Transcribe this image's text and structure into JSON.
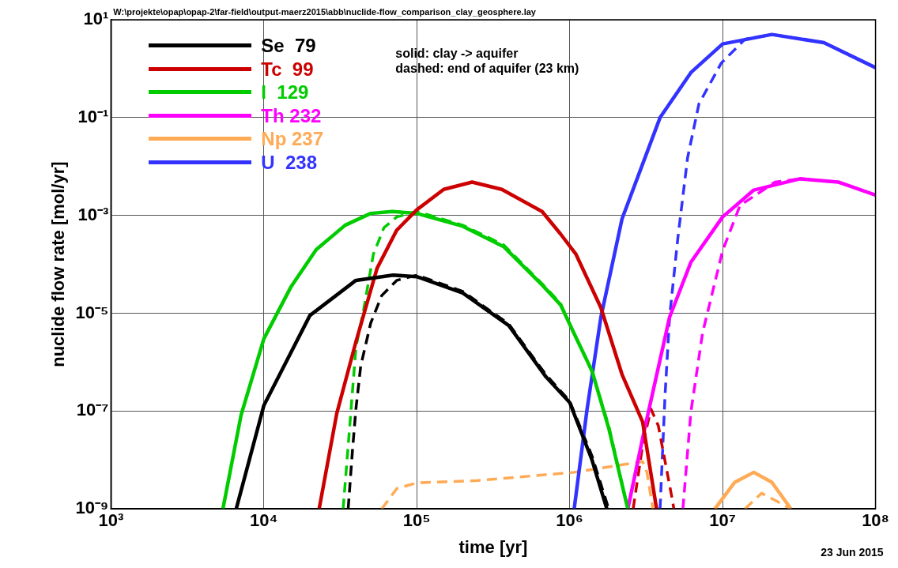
{
  "chart_data": {
    "type": "line",
    "xlabel": "time [yr]",
    "ylabel": "nuclide flow rate [mol/yr]",
    "log": "xy",
    "grid": true,
    "legend": "top left",
    "xlim": [
      1000,
      100000000
    ],
    "ylim": [
      1e-09,
      10
    ],
    "xticks": [
      {
        "value": 1000,
        "label": "10³"
      },
      {
        "value": 10000,
        "label": "10⁴"
      },
      {
        "value": 100000,
        "label": "10⁵"
      },
      {
        "value": 1000000,
        "label": "10⁶"
      },
      {
        "value": 10000000,
        "label": "10⁷"
      },
      {
        "value": 100000000,
        "label": "10⁸"
      }
    ],
    "yticks": [
      {
        "value": 1e-09,
        "label": "10⁻⁹"
      },
      {
        "value": 1e-07,
        "label": "10⁻⁷"
      },
      {
        "value": 1e-05,
        "label": "10⁻⁵"
      },
      {
        "value": 0.001,
        "label": "10⁻³"
      },
      {
        "value": 0.1,
        "label": "10⁻¹"
      },
      {
        "value": 10,
        "label": "10¹"
      }
    ],
    "annotations": [
      "W:\\projekte\\opap\\opap-2\\far-field\\output-maerz2015\\abb\\nuclide-flow_comparison_clay_geosphere.lay",
      "solid: clay -> aquifer",
      "dashed: end of aquifer (23 km)",
      "23 Jun 2015"
    ],
    "series": [
      {
        "name": "Se  79",
        "color": "#000000",
        "line_style": "solid",
        "x": [
          6600,
          10000,
          20000,
          40000,
          70000,
          100000,
          200000,
          400000,
          700000,
          1000000,
          1400000,
          1750000
        ],
        "values": [
          1e-09,
          1.3e-07,
          9e-06,
          4.7e-05,
          6e-05,
          5.6e-05,
          2.6e-05,
          5.6e-06,
          5e-07,
          1.5e-07,
          1e-08,
          1e-09
        ]
      },
      {
        "name": "Tc  99",
        "color": "#cc0000",
        "line_style": "solid",
        "x": [
          23000,
          30000,
          40000,
          55000,
          74000,
          100000,
          150000,
          230000,
          360000,
          660000,
          870000,
          1100000,
          1600000,
          2200000,
          3000000,
          3700000
        ],
        "values": [
          1e-09,
          9e-08,
          2.6e-06,
          8.3e-05,
          0.0005,
          0.0013,
          0.0034,
          0.0048,
          0.0034,
          0.0012,
          0.00042,
          0.00016,
          1.3e-05,
          5.6e-07,
          6e-08,
          1e-09
        ]
      },
      {
        "name": "I  129",
        "color": "#00cc00",
        "line_style": "solid",
        "x": [
          5400,
          7100,
          10000,
          15000,
          22000,
          34000,
          50000,
          69000,
          100000,
          200000,
          370000,
          660000,
          870000,
          1100000,
          1400000,
          1800000,
          2400000
        ],
        "values": [
          1e-09,
          8.3e-08,
          3e-06,
          3.4e-05,
          0.0002,
          0.00063,
          0.0011,
          0.0012,
          0.0011,
          0.0006,
          0.00023,
          3.8e-05,
          1.5e-05,
          3.2e-06,
          6.6e-07,
          4.5e-08,
          1e-09
        ]
      },
      {
        "name": "Th 232",
        "color": "#ff00ff",
        "line_style": "solid",
        "x": [
          2400000,
          3100000,
          4500000,
          6200000,
          10000000,
          16000000,
          32000000,
          57000000,
          100000000
        ],
        "values": [
          1e-09,
          4.5e-08,
          8.3e-06,
          0.00011,
          0.00093,
          0.0033,
          0.0056,
          0.0048,
          0.0026
        ]
      },
      {
        "name": "Np 237",
        "color": "#ffaa55",
        "line_style": "solid",
        "x": [
          8900000,
          12000000,
          16000000,
          21000000,
          28000000
        ],
        "values": [
          1e-09,
          3.5e-09,
          5.6e-09,
          3.5e-09,
          1e-09
        ]
      },
      {
        "name": "U  238",
        "color": "#3333ff",
        "line_style": "solid",
        "x": [
          1070000,
          1300000,
          1600000,
          2200000,
          3900000,
          6200000,
          10000000,
          21000000,
          46000000,
          100000000
        ],
        "values": [
          1e-09,
          1.1e-07,
          8.3e-06,
          0.00085,
          0.1,
          0.83,
          3.2,
          5,
          3.4,
          1.05
        ]
      },
      {
        "color": "#000000",
        "line_style": "dashed",
        "x": [
          35600,
          38000,
          40000,
          43000,
          50000,
          59000,
          74000,
          100000,
          200000,
          400000,
          700000,
          1000000,
          1400000,
          1800000
        ],
        "values": [
          1e-09,
          1.6e-08,
          1.1e-07,
          8.3e-07,
          6.3e-06,
          2.3e-05,
          4.7e-05,
          6e-05,
          2.8e-05,
          6e-06,
          5.5e-07,
          1.6e-07,
          1.2e-08,
          1e-09
        ]
      },
      {
        "color": "#cc0000",
        "line_style": "dashed",
        "x": [
          2600000,
          3000000,
          3400000,
          3800000,
          4700000,
          4800000
        ],
        "values": [
          1e-09,
          2e-08,
          1.1e-07,
          5e-08,
          1.5e-09,
          1e-09
        ]
      },
      {
        "color": "#00cc00",
        "line_style": "dashed",
        "x": [
          33000,
          36000,
          40000,
          45000,
          52000,
          61000,
          74000,
          100000,
          200000,
          370000,
          660000,
          870000,
          1100000,
          1400000,
          1800000,
          2400000
        ],
        "values": [
          1e-09,
          3e-08,
          2e-06,
          1.2e-05,
          0.00016,
          0.00056,
          0.00093,
          0.0012,
          0.00063,
          0.00025,
          4e-05,
          1.6e-05,
          3.2e-06,
          6.3e-07,
          5e-08,
          1e-09
        ]
      },
      {
        "color": "#ff00ff",
        "line_style": "dashed",
        "x": [
          5500000,
          6200000,
          7400000,
          10000000,
          13000000,
          22000000,
          32000000,
          57000000,
          100000000
        ],
        "values": [
          1e-09,
          9.5e-08,
          4e-06,
          0.00019,
          0.0016,
          0.0048,
          0.0056,
          0.0048,
          0.0026
        ]
      },
      {
        "color": "#ffaa55",
        "line_style": "dashed",
        "x": [
          59000,
          74000,
          100000,
          250000,
          1070000,
          3000000,
          3200000,
          3500000,
          5000000,
          14000000,
          18000000,
          22000000,
          28000000
        ],
        "values": [
          1e-09,
          2.6e-09,
          3.4e-09,
          3.8e-09,
          5.6e-09,
          9.3e-09,
          5.6e-09,
          1e-09,
          null,
          1e-09,
          2.1e-09,
          1.5e-09,
          1e-09
        ]
      },
      {
        "color": "#3333ff",
        "line_style": "dashed",
        "x": [
          3900000,
          4200000,
          4500000,
          5100000,
          5900000,
          7000000,
          9800000,
          14000000,
          21000000,
          46000000,
          100000000
        ],
        "values": [
          1e-09,
          2e-07,
          8.3e-06,
          0.00035,
          0.015,
          0.19,
          1.3,
          4,
          5,
          3.4,
          1.05
        ]
      }
    ]
  }
}
